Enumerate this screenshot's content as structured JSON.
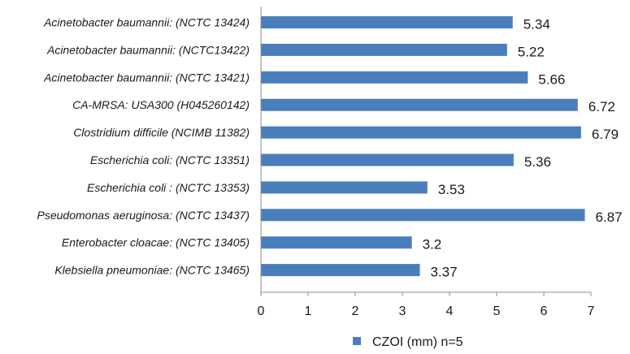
{
  "chart_data": {
    "type": "bar",
    "orientation": "horizontal",
    "categories": [
      "Acinetobacter baumannii: (NCTC 13424)",
      "Acinetobacter baumannii: (NCTC13422)",
      "Acinetobacter baumannii: (NCTC 13421)",
      "CA-MRSA: USA300 (H045260142)",
      "Clostridium difficile (NCIMB 11382)",
      "Escherichia coli: (NCTC 13351)",
      "Escherichia coli : (NCTC 13353)",
      "Pseudomonas aeruginosa: (NCTC 13437)",
      "Enterobacter cloacae: (NCTC 13405)",
      "Klebsiella pneumoniae: (NCTC 13465)"
    ],
    "series": [
      {
        "name": "CZOI (mm) n=5",
        "color": "#4a7ebb",
        "values": [
          5.34,
          5.22,
          5.66,
          6.72,
          6.79,
          5.36,
          3.53,
          6.87,
          3.2,
          3.37
        ],
        "value_labels": [
          "5.34",
          "5.22",
          "5.66",
          "6.72",
          "6.79",
          "5.36",
          "3.53",
          "6.87",
          "3.2",
          "3.37"
        ]
      }
    ],
    "xlim": [
      0,
      7
    ],
    "xticks": [
      "0",
      "1",
      "2",
      "3",
      "4",
      "5",
      "6",
      "7"
    ],
    "grid": false,
    "legend_position": "bottom"
  }
}
